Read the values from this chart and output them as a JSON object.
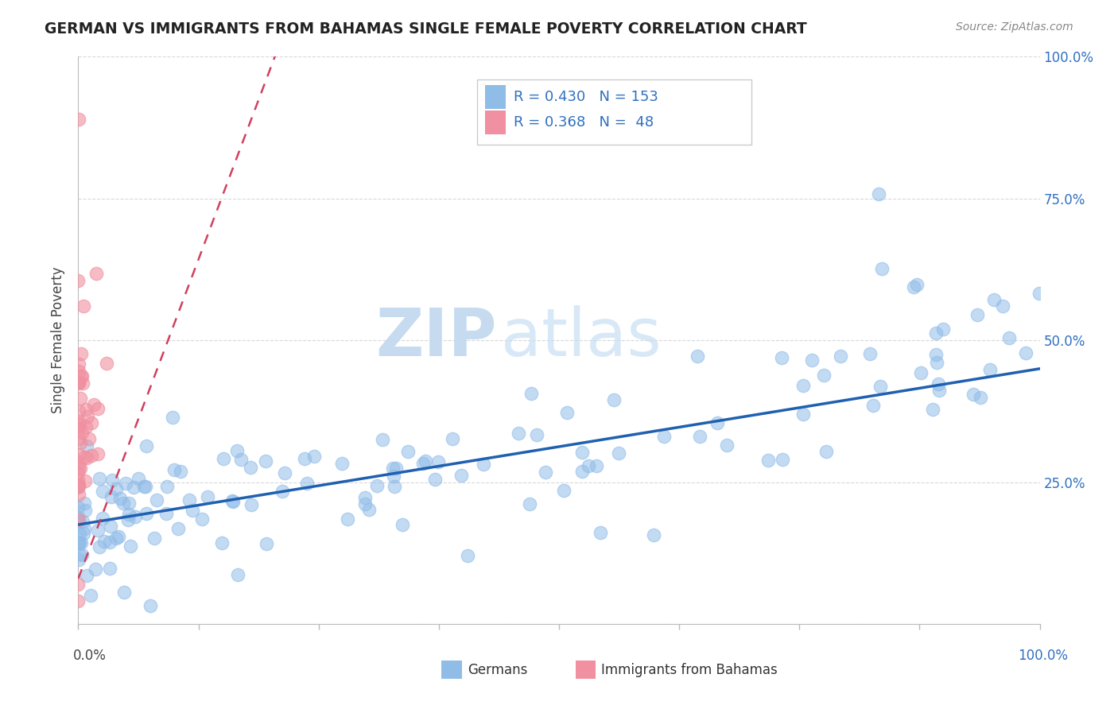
{
  "title": "GERMAN VS IMMIGRANTS FROM BAHAMAS SINGLE FEMALE POVERTY CORRELATION CHART",
  "source": "Source: ZipAtlas.com",
  "ylabel": "Single Female Poverty",
  "blue_color": "#90bce8",
  "pink_color": "#f090a0",
  "blue_line_color": "#2060b0",
  "pink_line_color": "#d04060",
  "watermark_zip": "ZIP",
  "watermark_atlas": "atlas",
  "R_blue": 0.43,
  "N_blue": 153,
  "R_pink": 0.368,
  "N_pink": 48,
  "background_color": "#ffffff",
  "grid_color": "#d8d8d8",
  "legend_R1": "R = 0.430",
  "legend_N1": "N = 153",
  "legend_R2": "R = 0.368",
  "legend_N2": "N =  48",
  "legend_text_color": "#3070c0",
  "axis_label_color": "#3070c0",
  "title_color": "#222222",
  "source_color": "#888888",
  "seed_blue": 7,
  "seed_pink": 13
}
